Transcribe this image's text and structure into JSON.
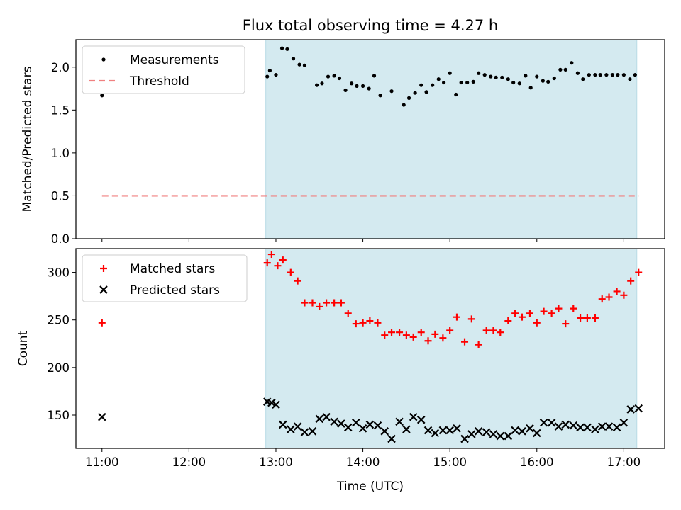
{
  "chart_data": {
    "title": "Flux total observing time = 4.27 h",
    "shared_xlabel": "Time (UTC)",
    "x_ticks": [
      "11:00",
      "12:00",
      "13:00",
      "14:00",
      "15:00",
      "16:00",
      "17:00"
    ],
    "x_tick_values": [
      11.0,
      12.0,
      13.0,
      14.0,
      15.0,
      16.0,
      17.0
    ],
    "xlim": [
      10.7,
      17.47
    ],
    "observing_window": {
      "start": "12:53",
      "end": "17:09",
      "color": "#d4eaf0"
    },
    "panels": [
      {
        "type": "scatter",
        "ylabel": "Matched/Predicted stars",
        "ylim": [
          0.0,
          2.32
        ],
        "y_ticks": [
          "0.0",
          "0.5",
          "1.0",
          "1.5",
          "2.0"
        ],
        "y_tick_values": [
          0.0,
          0.5,
          1.0,
          1.5,
          2.0
        ],
        "legend_position": "top-left",
        "series": [
          {
            "name": "Measurements",
            "marker": "dot",
            "color": "#000000",
            "x": [
              11.0,
              12.9,
              12.93,
              13.0,
              13.07,
              13.13,
              13.2,
              13.27,
              13.33,
              13.47,
              13.53,
              13.6,
              13.67,
              13.73,
              13.8,
              13.87,
              13.93,
              14.0,
              14.07,
              14.13,
              14.2,
              14.33,
              14.47,
              14.53,
              14.6,
              14.67,
              14.73,
              14.8,
              14.87,
              14.93,
              15.0,
              15.07,
              15.13,
              15.2,
              15.27,
              15.33,
              15.4,
              15.47,
              15.53,
              15.6,
              15.67,
              15.73,
              15.8,
              15.87,
              15.93,
              16.0,
              16.07,
              16.13,
              16.2,
              16.27,
              16.33,
              16.4,
              16.47,
              16.53,
              16.6,
              16.67,
              16.73,
              16.8,
              16.87,
              16.93,
              17.0,
              17.07,
              17.13
            ],
            "y": [
              1.67,
              1.89,
              1.96,
              1.91,
              2.22,
              2.21,
              2.1,
              2.03,
              2.02,
              1.79,
              1.81,
              1.89,
              1.9,
              1.87,
              1.73,
              1.81,
              1.78,
              1.78,
              1.75,
              1.9,
              1.67,
              1.72,
              1.56,
              1.64,
              1.7,
              1.79,
              1.71,
              1.79,
              1.86,
              1.82,
              1.93,
              1.68,
              1.82,
              1.82,
              1.83,
              1.93,
              1.91,
              1.89,
              1.88,
              1.88,
              1.86,
              1.82,
              1.81,
              1.9,
              1.76,
              1.89,
              1.84,
              1.83,
              1.87,
              1.97,
              1.97,
              2.05,
              1.93,
              1.86,
              1.91,
              1.91,
              1.91,
              1.91,
              1.91,
              1.91,
              1.91,
              1.86,
              1.91
            ]
          },
          {
            "name": "Threshold",
            "marker": "dashed-line",
            "color": "#f08080",
            "x": [
              11.0,
              17.17
            ],
            "y": [
              0.5,
              0.5
            ]
          }
        ]
      },
      {
        "type": "scatter",
        "ylabel": "Count",
        "ylim": [
          115,
          325
        ],
        "y_ticks": [
          "150",
          "200",
          "250",
          "300"
        ],
        "y_tick_values": [
          150,
          200,
          250,
          300
        ],
        "legend_position": "top-left",
        "series": [
          {
            "name": "Matched stars",
            "marker": "plus",
            "color": "#ff0000",
            "x": [
              11.0,
              12.9,
              12.95,
              13.02,
              13.08,
              13.17,
              13.25,
              13.33,
              13.42,
              13.5,
              13.58,
              13.67,
              13.75,
              13.83,
              13.92,
              14.0,
              14.08,
              14.17,
              14.25,
              14.33,
              14.42,
              14.5,
              14.58,
              14.67,
              14.75,
              14.83,
              14.92,
              15.0,
              15.08,
              15.17,
              15.25,
              15.33,
              15.42,
              15.5,
              15.58,
              15.67,
              15.75,
              15.83,
              15.92,
              16.0,
              16.08,
              16.17,
              16.25,
              16.33,
              16.42,
              16.5,
              16.58,
              16.67,
              16.75,
              16.83,
              16.92,
              17.0,
              17.08,
              17.17
            ],
            "y": [
              247,
              310,
              319,
              307,
              313,
              300,
              291,
              268,
              268,
              264,
              268,
              268,
              268,
              257,
              246,
              247,
              249,
              247,
              234,
              237,
              237,
              234,
              232,
              237,
              228,
              235,
              231,
              239,
              253,
              227,
              251,
              224,
              239,
              239,
              237,
              249,
              257,
              253,
              257,
              247,
              259,
              257,
              262,
              246,
              262,
              252,
              252,
              252,
              272,
              274,
              280,
              276,
              291,
              300
            ]
          },
          {
            "name": "Predicted stars",
            "marker": "x",
            "color": "#000000",
            "x": [
              11.0,
              12.9,
              12.95,
              13.0,
              13.08,
              13.17,
              13.25,
              13.33,
              13.42,
              13.5,
              13.58,
              13.67,
              13.75,
              13.83,
              13.92,
              14.0,
              14.08,
              14.17,
              14.25,
              14.33,
              14.42,
              14.5,
              14.58,
              14.67,
              14.75,
              14.83,
              14.92,
              15.0,
              15.08,
              15.17,
              15.25,
              15.33,
              15.42,
              15.5,
              15.58,
              15.67,
              15.75,
              15.83,
              15.92,
              16.0,
              16.08,
              16.17,
              16.25,
              16.33,
              16.42,
              16.5,
              16.58,
              16.67,
              16.75,
              16.83,
              16.92,
              17.0,
              17.08,
              17.17
            ],
            "y": [
              148,
              164,
              163,
              161,
              140,
              135,
              138,
              132,
              133,
              146,
              148,
              143,
              141,
              137,
              142,
              136,
              140,
              139,
              133,
              125,
              143,
              135,
              148,
              145,
              134,
              131,
              134,
              134,
              136,
              125,
              130,
              133,
              132,
              130,
              128,
              128,
              134,
              133,
              136,
              131,
              142,
              142,
              138,
              140,
              139,
              137,
              137,
              135,
              138,
              138,
              137,
              142,
              156,
              157
            ]
          }
        ]
      }
    ]
  }
}
